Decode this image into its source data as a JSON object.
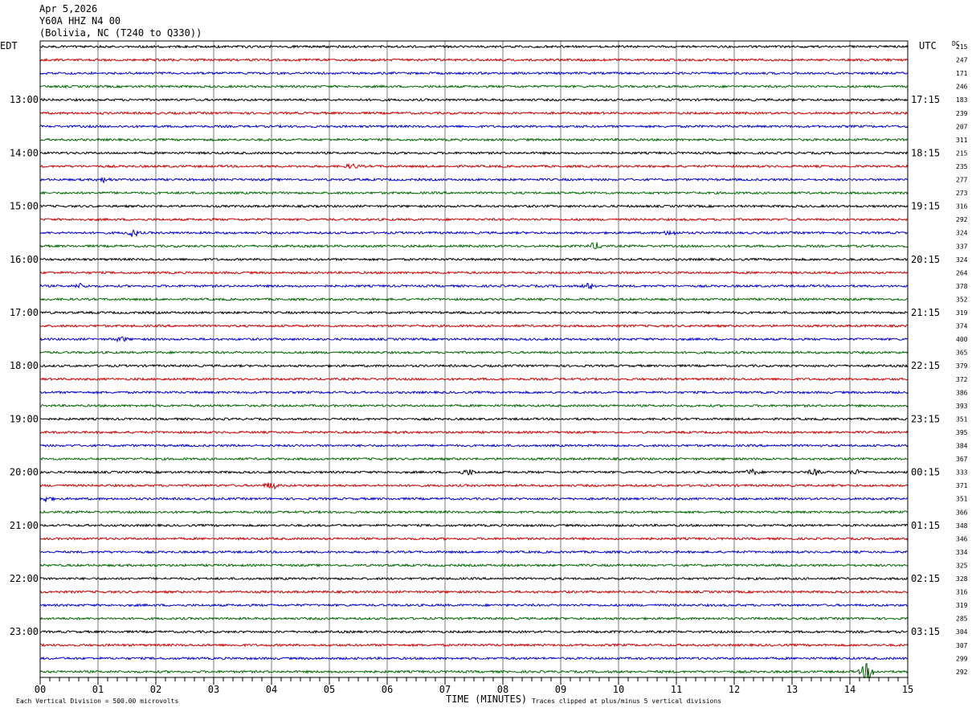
{
  "header": {
    "date": "Apr 5,2026",
    "channel": "Y60A HHZ N4 00",
    "location": "(Bolivia, NC (T240 to Q330))"
  },
  "footer": {
    "scale_note": "Each Vertical Division =  500.00 microvolts",
    "clip_note": "Traces clipped at plus/minus 5 vertical divisions"
  },
  "chart_data": {
    "type": "line",
    "title": "",
    "xlabel": "TIME (MINUTES)",
    "left_axis_label": "EDT",
    "right_axis_label": "UTC",
    "dc_label": "DC",
    "xlim": [
      0,
      15
    ],
    "x_ticks": [
      "00",
      "01",
      "02",
      "03",
      "04",
      "05",
      "06",
      "07",
      "08",
      "09",
      "10",
      "11",
      "12",
      "13",
      "14",
      "15"
    ],
    "grid_vertical": true,
    "trace_colors": [
      "#000000",
      "#cc0000",
      "#0000cc",
      "#006600"
    ],
    "left_time_labels": [
      {
        "row": 4,
        "label": "13:00"
      },
      {
        "row": 8,
        "label": "14:00"
      },
      {
        "row": 12,
        "label": "15:00"
      },
      {
        "row": 16,
        "label": "16:00"
      },
      {
        "row": 20,
        "label": "17:00"
      },
      {
        "row": 24,
        "label": "18:00"
      },
      {
        "row": 28,
        "label": "19:00"
      },
      {
        "row": 32,
        "label": "20:00"
      },
      {
        "row": 36,
        "label": "21:00"
      },
      {
        "row": 40,
        "label": "22:00"
      },
      {
        "row": 44,
        "label": "23:00"
      }
    ],
    "right_time_labels": [
      {
        "row": 4,
        "label": "17:15"
      },
      {
        "row": 8,
        "label": "18:15"
      },
      {
        "row": 12,
        "label": "19:15"
      },
      {
        "row": 16,
        "label": "20:15"
      },
      {
        "row": 20,
        "label": "21:15"
      },
      {
        "row": 24,
        "label": "22:15"
      },
      {
        "row": 28,
        "label": "23:15"
      },
      {
        "row": 32,
        "label": "00:15"
      },
      {
        "row": 36,
        "label": "01:15"
      },
      {
        "row": 40,
        "label": "02:15"
      },
      {
        "row": 44,
        "label": "03:15"
      }
    ],
    "dc_offsets": [
      215,
      247,
      171,
      246,
      183,
      239,
      207,
      311,
      215,
      235,
      277,
      273,
      316,
      292,
      324,
      337,
      324,
      264,
      378,
      352,
      319,
      374,
      400,
      365,
      379,
      372,
      386,
      393,
      351,
      395,
      384,
      367,
      333,
      371,
      351,
      366,
      348,
      346,
      334,
      325,
      328,
      316,
      319,
      285,
      304,
      307,
      299,
      292
    ],
    "events": [
      {
        "row": 9,
        "minute": 5.4,
        "amp": 3
      },
      {
        "row": 10,
        "minute": 1.1,
        "amp": 3
      },
      {
        "row": 14,
        "minute": 1.6,
        "amp": 5
      },
      {
        "row": 14,
        "minute": 10.9,
        "amp": 3
      },
      {
        "row": 15,
        "minute": 9.6,
        "amp": 5
      },
      {
        "row": 18,
        "minute": 0.7,
        "amp": 3
      },
      {
        "row": 18,
        "minute": 9.5,
        "amp": 4
      },
      {
        "row": 22,
        "minute": 1.4,
        "amp": 3
      },
      {
        "row": 32,
        "minute": 7.4,
        "amp": 4
      },
      {
        "row": 32,
        "minute": 12.3,
        "amp": 4
      },
      {
        "row": 32,
        "minute": 13.4,
        "amp": 4
      },
      {
        "row": 32,
        "minute": 14.1,
        "amp": 3
      },
      {
        "row": 33,
        "minute": 4.0,
        "amp": 5
      },
      {
        "row": 34,
        "minute": 0.1,
        "amp": 4
      },
      {
        "row": 47,
        "minute": 14.3,
        "amp": 13
      }
    ]
  }
}
